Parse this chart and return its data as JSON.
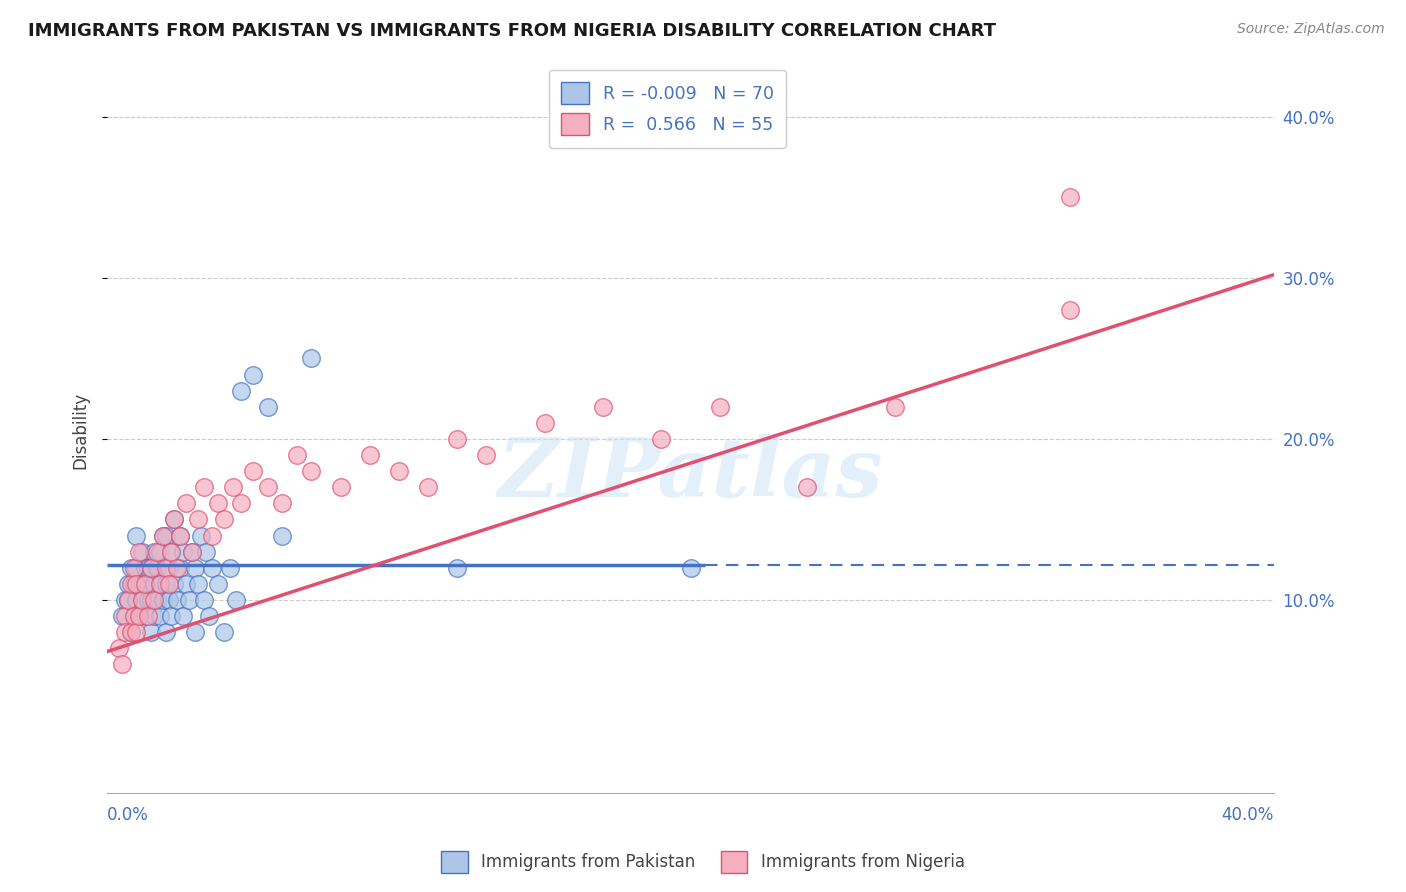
{
  "title": "IMMIGRANTS FROM PAKISTAN VS IMMIGRANTS FROM NIGERIA DISABILITY CORRELATION CHART",
  "source": "Source: ZipAtlas.com",
  "ylabel": "Disability",
  "ytick_labels": [
    "10.0%",
    "20.0%",
    "30.0%",
    "40.0%"
  ],
  "ytick_values": [
    0.1,
    0.2,
    0.3,
    0.4
  ],
  "xlim": [
    0.0,
    0.4
  ],
  "ylim": [
    -0.02,
    0.43
  ],
  "legend_r_pakistan": "-0.009",
  "legend_n_pakistan": "70",
  "legend_r_nigeria": "0.566",
  "legend_n_nigeria": "55",
  "color_pakistan": "#adc6e8",
  "color_nigeria": "#f5afc0",
  "line_color_pakistan": "#4472c4",
  "line_color_nigeria": "#e05070",
  "watermark": "ZIPatlas",
  "background_color": "#ffffff",
  "legend_label_pakistan": "Immigrants from Pakistan",
  "legend_label_nigeria": "Immigrants from Nigeria",
  "pak_line_start_x": 0.0,
  "pak_line_end_solid_x": 0.205,
  "pak_line_end_x": 0.4,
  "pak_line_y": 0.122,
  "nig_line_start_x": 0.0,
  "nig_line_start_y": 0.068,
  "nig_line_end_x": 0.4,
  "nig_line_end_y": 0.302,
  "pakistan_x": [
    0.005,
    0.006,
    0.007,
    0.007,
    0.008,
    0.008,
    0.009,
    0.009,
    0.01,
    0.01,
    0.01,
    0.011,
    0.011,
    0.012,
    0.012,
    0.012,
    0.013,
    0.013,
    0.013,
    0.014,
    0.014,
    0.015,
    0.015,
    0.015,
    0.016,
    0.016,
    0.016,
    0.017,
    0.017,
    0.018,
    0.018,
    0.018,
    0.019,
    0.019,
    0.02,
    0.02,
    0.02,
    0.021,
    0.021,
    0.022,
    0.022,
    0.023,
    0.023,
    0.024,
    0.025,
    0.025,
    0.026,
    0.026,
    0.027,
    0.028,
    0.029,
    0.03,
    0.03,
    0.031,
    0.032,
    0.033,
    0.034,
    0.035,
    0.036,
    0.038,
    0.04,
    0.042,
    0.044,
    0.046,
    0.05,
    0.055,
    0.06,
    0.07,
    0.12,
    0.2
  ],
  "pakistan_y": [
    0.09,
    0.1,
    0.1,
    0.11,
    0.08,
    0.12,
    0.09,
    0.11,
    0.1,
    0.12,
    0.14,
    0.09,
    0.11,
    0.1,
    0.11,
    0.13,
    0.09,
    0.11,
    0.12,
    0.1,
    0.12,
    0.08,
    0.1,
    0.12,
    0.09,
    0.11,
    0.13,
    0.1,
    0.12,
    0.09,
    0.11,
    0.13,
    0.1,
    0.14,
    0.08,
    0.11,
    0.14,
    0.1,
    0.12,
    0.09,
    0.13,
    0.11,
    0.15,
    0.1,
    0.12,
    0.14,
    0.09,
    0.13,
    0.11,
    0.1,
    0.13,
    0.08,
    0.12,
    0.11,
    0.14,
    0.1,
    0.13,
    0.09,
    0.12,
    0.11,
    0.08,
    0.12,
    0.1,
    0.23,
    0.24,
    0.22,
    0.14,
    0.25,
    0.12,
    0.12
  ],
  "nigeria_x": [
    0.004,
    0.005,
    0.006,
    0.006,
    0.007,
    0.008,
    0.008,
    0.009,
    0.009,
    0.01,
    0.01,
    0.011,
    0.011,
    0.012,
    0.013,
    0.014,
    0.015,
    0.016,
    0.017,
    0.018,
    0.019,
    0.02,
    0.021,
    0.022,
    0.023,
    0.024,
    0.025,
    0.027,
    0.029,
    0.031,
    0.033,
    0.036,
    0.038,
    0.04,
    0.043,
    0.046,
    0.05,
    0.055,
    0.06,
    0.065,
    0.07,
    0.08,
    0.09,
    0.1,
    0.11,
    0.12,
    0.13,
    0.15,
    0.17,
    0.19,
    0.21,
    0.24,
    0.27,
    0.33,
    0.33
  ],
  "nigeria_y": [
    0.07,
    0.06,
    0.09,
    0.08,
    0.1,
    0.08,
    0.11,
    0.09,
    0.12,
    0.08,
    0.11,
    0.09,
    0.13,
    0.1,
    0.11,
    0.09,
    0.12,
    0.1,
    0.13,
    0.11,
    0.14,
    0.12,
    0.11,
    0.13,
    0.15,
    0.12,
    0.14,
    0.16,
    0.13,
    0.15,
    0.17,
    0.14,
    0.16,
    0.15,
    0.17,
    0.16,
    0.18,
    0.17,
    0.16,
    0.19,
    0.18,
    0.17,
    0.19,
    0.18,
    0.17,
    0.2,
    0.19,
    0.21,
    0.22,
    0.2,
    0.22,
    0.17,
    0.22,
    0.28,
    0.35
  ]
}
